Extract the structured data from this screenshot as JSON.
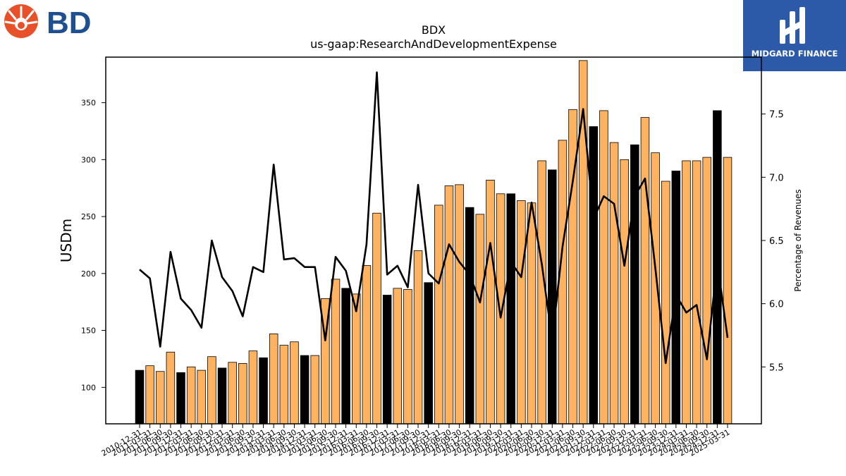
{
  "logos": {
    "left_text": "BD",
    "right_text": "MIDGARD FINANCE",
    "left_color": "#1d4f91",
    "left_mark_color": "#e8502a",
    "right_bg": "#2c5aa8"
  },
  "chart_data": {
    "type": "bar",
    "title": "BDX",
    "subtitle": "us-gaap:ResearchAndDevelopmentExpense",
    "ylabel": "USDm",
    "y2label": "Percentage of Revenues",
    "ylim": [
      68,
      390
    ],
    "y2lim": [
      5.05,
      7.95
    ],
    "yticks": [
      100,
      150,
      200,
      250,
      300,
      350
    ],
    "y2ticks": [
      5.5,
      6.0,
      6.5,
      7.0,
      7.5
    ],
    "grid": false,
    "colors": {
      "annual": "#000000",
      "quarter": "#ffb361",
      "line": "#000000"
    },
    "categories": [
      "2010-12-31",
      "2011-03-31",
      "2011-06-30",
      "2011-09-30",
      "2011-12-31",
      "2012-03-31",
      "2012-06-30",
      "2012-09-30",
      "2012-12-31",
      "2013-03-31",
      "2013-06-30",
      "2013-09-30",
      "2013-12-31",
      "2014-03-31",
      "2014-06-30",
      "2014-09-30",
      "2014-12-31",
      "2015-03-31",
      "2015-06-30",
      "2015-09-30",
      "2015-12-31",
      "2016-03-31",
      "2016-06-30",
      "2016-09-30",
      "2016-12-31",
      "2017-03-31",
      "2017-06-30",
      "2017-09-30",
      "2017-12-31",
      "2018-03-31",
      "2018-06-30",
      "2018-09-30",
      "2018-12-31",
      "2019-03-31",
      "2019-06-30",
      "2019-09-30",
      "2019-12-31",
      "2020-03-31",
      "2020-06-30",
      "2020-09-30",
      "2020-12-31",
      "2021-03-31",
      "2021-06-30",
      "2021-09-30",
      "2021-12-31",
      "2022-03-31",
      "2022-06-30",
      "2022-09-30",
      "2022-12-31",
      "2023-03-31",
      "2023-06-30",
      "2023-09-30",
      "2023-12-31",
      "2024-03-31",
      "2024-06-30",
      "2024-09-30",
      "2024-12-31",
      "2025-03-31"
    ],
    "series": [
      {
        "kind": "bar",
        "values": [
          115,
          119,
          114,
          131,
          113,
          118,
          115,
          127,
          117,
          122,
          121,
          132,
          126,
          147,
          137,
          140,
          128,
          128,
          178,
          195,
          187,
          182,
          207,
          253,
          181,
          187,
          186,
          220,
          192,
          260,
          277,
          278,
          258,
          252,
          282,
          270,
          270,
          264,
          262,
          299,
          291,
          317,
          344,
          387,
          329,
          343,
          315,
          300,
          313,
          337,
          306,
          281,
          290,
          299,
          299,
          302,
          343,
          302
        ],
        "annual": [
          true,
          false,
          false,
          false,
          true,
          false,
          false,
          false,
          true,
          false,
          false,
          false,
          true,
          false,
          false,
          false,
          true,
          false,
          false,
          false,
          true,
          false,
          false,
          false,
          true,
          false,
          false,
          false,
          true,
          false,
          false,
          false,
          true,
          false,
          false,
          false,
          true,
          false,
          false,
          false,
          true,
          false,
          false,
          false,
          true,
          false,
          false,
          false,
          true,
          false,
          false,
          false,
          true,
          false,
          false,
          false,
          true,
          false
        ]
      },
      {
        "kind": "line",
        "axis": "right",
        "values": [
          6.27,
          6.2,
          5.66,
          6.41,
          6.04,
          5.95,
          5.81,
          6.5,
          6.21,
          6.1,
          5.9,
          6.29,
          6.25,
          7.1,
          6.35,
          6.36,
          6.29,
          6.29,
          5.71,
          6.37,
          6.26,
          5.94,
          6.47,
          7.83,
          6.23,
          6.3,
          6.13,
          6.94,
          6.24,
          6.16,
          6.47,
          6.33,
          6.23,
          6.01,
          6.48,
          5.89,
          6.33,
          6.21,
          6.8,
          6.31,
          5.71,
          6.45,
          6.97,
          7.54,
          6.67,
          6.85,
          6.79,
          6.3,
          6.85,
          6.99,
          6.28,
          5.53,
          6.07,
          5.93,
          5.99,
          5.56,
          6.33,
          5.73
        ]
      }
    ]
  }
}
